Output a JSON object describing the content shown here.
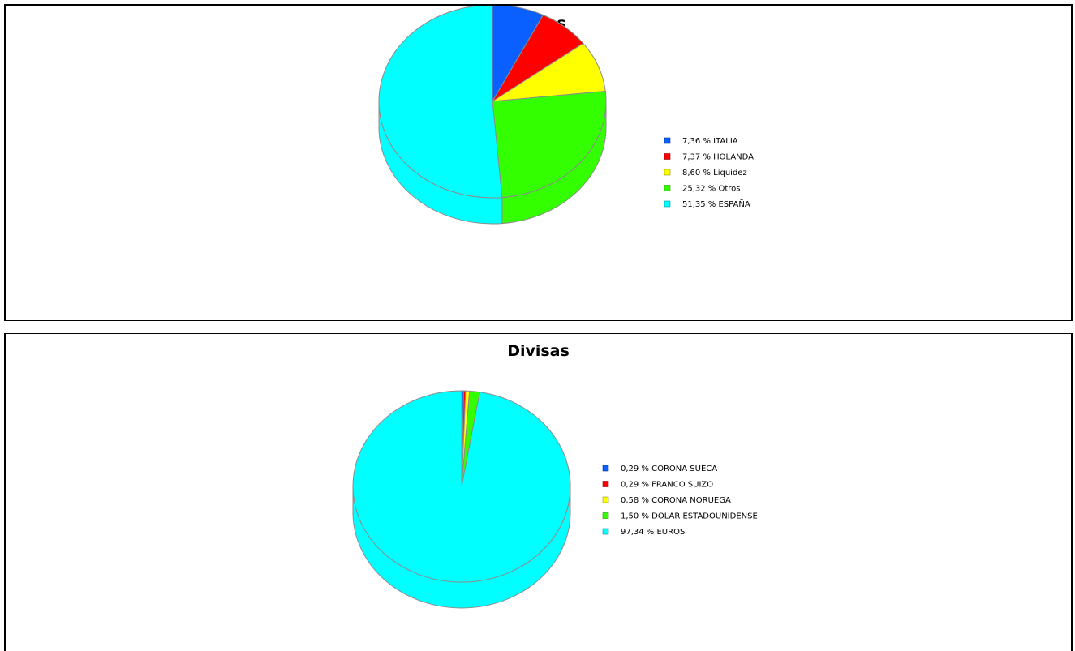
{
  "chart_data": [
    {
      "type": "pie",
      "title": "Países",
      "legend_position": "right",
      "slices": [
        {
          "label": "7,36 % ITALIA",
          "value": 7.36,
          "color": "#0a5fff"
        },
        {
          "label": "7,37 % HOLANDA",
          "value": 7.37,
          "color": "#ff0000"
        },
        {
          "label": "8,60 % Liquidez",
          "value": 8.6,
          "color": "#ffff00"
        },
        {
          "label": "25,32 % Otros",
          "value": 25.32,
          "color": "#33ff00"
        },
        {
          "label": "51,35 % ESPAÑA",
          "value": 51.35,
          "color": "#00ffff"
        }
      ]
    },
    {
      "type": "pie",
      "title": "Divisas",
      "legend_position": "right",
      "slices": [
        {
          "label": "0,29 % CORONA SUECA",
          "value": 0.29,
          "color": "#0a5fff"
        },
        {
          "label": "0,29 % FRANCO SUIZO",
          "value": 0.29,
          "color": "#ff0000"
        },
        {
          "label": "0,58 % CORONA NORUEGA",
          "value": 0.58,
          "color": "#ffff00"
        },
        {
          "label": "1,50 % DOLAR ESTADOUNIDENSE",
          "value": 1.5,
          "color": "#33ff00"
        },
        {
          "label": "97,34 % EUROS",
          "value": 97.34,
          "color": "#00ffff"
        }
      ]
    }
  ]
}
